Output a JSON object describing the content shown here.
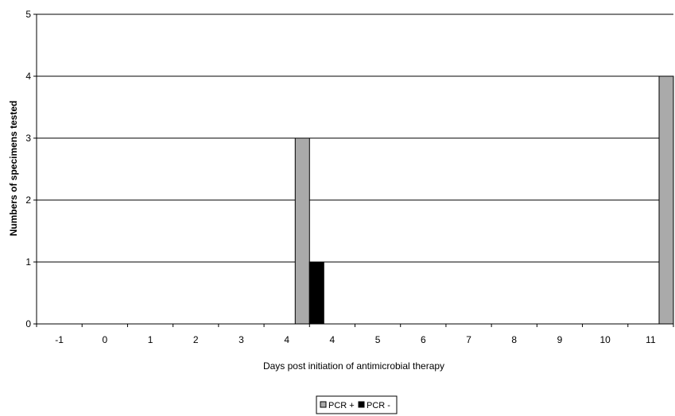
{
  "chart_data": {
    "type": "bar",
    "title": "",
    "xlabel": "Days post initiation of antimicrobial therapy",
    "ylabel": "Numbers of specimens tested",
    "categories": [
      "-1",
      "0",
      "1",
      "2",
      "3",
      "4",
      "4",
      "5",
      "6",
      "7",
      "8",
      "9",
      "10",
      "11"
    ],
    "series": [
      {
        "name": "PCR +",
        "color": "#aaaaaa",
        "values": [
          0,
          0,
          0,
          0,
          0,
          3,
          0,
          0,
          0,
          0,
          0,
          0,
          0,
          4
        ]
      },
      {
        "name": "PCR -",
        "color": "#000000",
        "values": [
          0,
          0,
          0,
          0,
          0,
          0,
          1,
          0,
          0,
          0,
          0,
          0,
          0,
          0
        ]
      }
    ],
    "ylim": [
      0,
      5
    ],
    "yticks": [
      0,
      1,
      2,
      3,
      4,
      5
    ],
    "grid": true,
    "legend_position": "bottom"
  }
}
